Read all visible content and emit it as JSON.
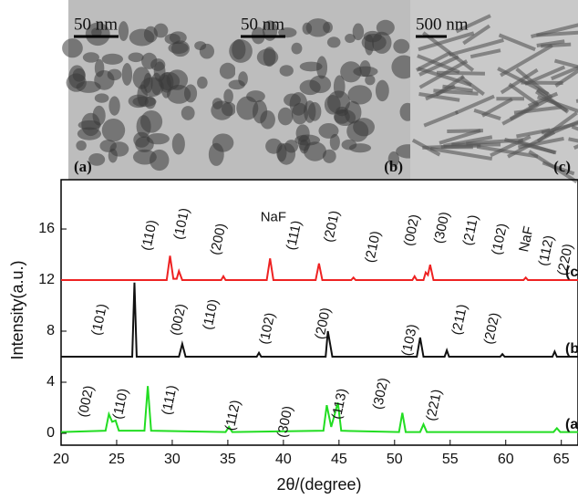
{
  "images": [
    {
      "scale_bar": "50 nm",
      "label": "(a)"
    },
    {
      "scale_bar": "50 nm",
      "label": "(b)"
    },
    {
      "scale_bar": "500 nm",
      "label": "(c)"
    }
  ],
  "chart_data": {
    "type": "line",
    "x_label": "2θ/(degree)",
    "y_label": "Intensity(a.u.)",
    "xlim": [
      20,
      66.5
    ],
    "xticks": [
      20,
      25,
      30,
      35,
      40,
      45,
      50,
      55,
      60,
      65
    ],
    "ylim": [
      -0.93,
      19.86
    ],
    "yticks": [
      0,
      4,
      8,
      12,
      16
    ],
    "series": [
      {
        "name": "(a",
        "color": "#22dd22",
        "x": [
          20,
          24.0,
          24.3,
          24.6,
          24.9,
          25.2,
          27.5,
          27.8,
          28.1,
          34.8,
          35.1,
          35.4,
          43.6,
          43.9,
          44.3,
          44.9,
          45.2,
          50.4,
          50.7,
          51.0,
          52.3,
          52.6,
          52.9,
          64.3,
          64.6,
          64.9,
          66.5
        ],
        "values": [
          0.1,
          0.2,
          1.5,
          0.9,
          1.0,
          0.2,
          0.2,
          3.7,
          0.2,
          0.1,
          0.5,
          0.1,
          0.2,
          2.2,
          0.5,
          2.4,
          0.2,
          0.1,
          1.6,
          0.1,
          0.1,
          0.7,
          0.1,
          0.1,
          0.4,
          0.1,
          0.1
        ]
      },
      {
        "name": "(b",
        "color": "#111111",
        "x": [
          20,
          26.4,
          26.6,
          26.8,
          30.6,
          30.9,
          31.2,
          37.6,
          37.8,
          38.0,
          43.8,
          44.0,
          44.4,
          52.0,
          52.3,
          52.6,
          54.5,
          54.7,
          54.9,
          59.5,
          59.7,
          59.9,
          64.2,
          64.4,
          64.6,
          66.5
        ],
        "values": [
          6,
          6,
          11.8,
          6,
          6,
          7.0,
          6,
          6,
          6.3,
          6,
          6,
          8.0,
          6,
          6,
          7.5,
          6,
          6,
          6.5,
          6,
          6,
          6.2,
          6,
          6,
          6.4,
          6,
          6
        ]
      },
      {
        "name": "(c",
        "color": "#ee2222",
        "x": [
          20,
          29.5,
          29.8,
          30.1,
          30.4,
          30.6,
          30.9,
          34.4,
          34.6,
          34.8,
          38.5,
          38.8,
          39.1,
          42.9,
          43.2,
          43.5,
          46.1,
          46.3,
          46.5,
          51.6,
          51.8,
          52.0,
          52.6,
          52.8,
          53.0,
          53.2,
          53.5,
          61.6,
          61.8,
          62.0,
          66.5
        ],
        "values": [
          12,
          12,
          13.9,
          12.1,
          12.1,
          12.7,
          12,
          12,
          12.3,
          12,
          12,
          13.7,
          12,
          12,
          13.3,
          12,
          12,
          12.2,
          12,
          12,
          12.3,
          12,
          12,
          12.6,
          12.4,
          13.2,
          12,
          12,
          12.2,
          12,
          12
        ]
      }
    ],
    "annotations": [
      {
        "text": "(110)",
        "x": 28.0,
        "y": 15.5
      },
      {
        "text": "(101)",
        "x": 30.9,
        "y": 16.4
      },
      {
        "text": "(200)",
        "x": 34.2,
        "y": 15.2
      },
      {
        "text": "NaF",
        "x": 39.1,
        "y": 16.9,
        "horizontal": true
      },
      {
        "text": "(111)",
        "x": 41.0,
        "y": 15.5
      },
      {
        "text": "(201)",
        "x": 44.4,
        "y": 16.2
      },
      {
        "text": "(210)",
        "x": 48.1,
        "y": 14.6
      },
      {
        "text": "(002)",
        "x": 51.6,
        "y": 15.9
      },
      {
        "text": "(300)",
        "x": 54.3,
        "y": 16.1
      },
      {
        "text": "(211)",
        "x": 56.9,
        "y": 15.9
      },
      {
        "text": "(102)",
        "x": 59.5,
        "y": 15.2
      },
      {
        "text": "NaF",
        "x": 61.9,
        "y": 15.2
      },
      {
        "text": "(112)",
        "x": 63.7,
        "y": 14.3
      },
      {
        "text": "(220)",
        "x": 65.4,
        "y": 13.6
      },
      {
        "text": "(101)",
        "x": 23.5,
        "y": 8.9
      },
      {
        "text": "(002)",
        "x": 30.6,
        "y": 8.9
      },
      {
        "text": "(110)",
        "x": 33.5,
        "y": 9.3
      },
      {
        "text": "(102)",
        "x": 38.6,
        "y": 8.2
      },
      {
        "text": "(200)",
        "x": 43.6,
        "y": 8.6
      },
      {
        "text": "(103)",
        "x": 51.4,
        "y": 7.3
      },
      {
        "text": "(211)",
        "x": 55.9,
        "y": 8.9
      },
      {
        "text": "(202)",
        "x": 58.8,
        "y": 8.2
      },
      {
        "text": "(002)",
        "x": 22.3,
        "y": 2.5
      },
      {
        "text": "(110)",
        "x": 25.4,
        "y": 2.3
      },
      {
        "text": "(111)",
        "x": 29.8,
        "y": 2.6
      },
      {
        "text": "(112)",
        "x": 35.5,
        "y": 1.4
      },
      {
        "text": "(300)",
        "x": 40.2,
        "y": 0.9
      },
      {
        "text": "(113)",
        "x": 45.1,
        "y": 2.3
      },
      {
        "text": "(302)",
        "x": 48.8,
        "y": 3.1
      },
      {
        "text": "(221)",
        "x": 53.6,
        "y": 2.2
      }
    ]
  }
}
